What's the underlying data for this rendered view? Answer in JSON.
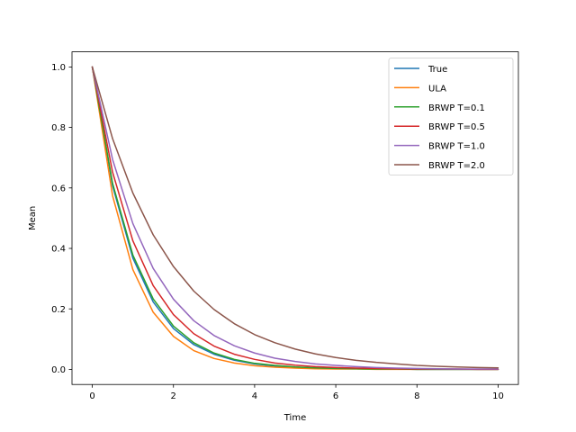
{
  "chart_data": {
    "type": "line",
    "title": "",
    "xlabel": "Time",
    "ylabel": "Mean",
    "xlim": [
      -0.5,
      10.5
    ],
    "ylim": [
      -0.05,
      1.05
    ],
    "xticks": [
      0,
      2,
      4,
      6,
      8,
      10
    ],
    "xtick_labels": [
      "0",
      "2",
      "4",
      "6",
      "8",
      "10"
    ],
    "yticks": [
      0.0,
      0.2,
      0.4,
      0.6,
      0.8,
      1.0
    ],
    "ytick_labels": [
      "0.0",
      "0.2",
      "0.4",
      "0.6",
      "0.8",
      "1.0"
    ],
    "grid": false,
    "legend_position": "top-right",
    "x": [
      0,
      0.5,
      1,
      1.5,
      2,
      2.5,
      3,
      3.5,
      4,
      4.5,
      5,
      5.5,
      6,
      6.5,
      7,
      7.5,
      8,
      8.5,
      9,
      9.5,
      10
    ],
    "series": [
      {
        "name": "True",
        "color": "#1f77b4",
        "values": [
          1.0,
          0.607,
          0.368,
          0.223,
          0.135,
          0.082,
          0.05,
          0.03,
          0.018,
          0.011,
          0.007,
          0.004,
          0.002,
          0.002,
          0.001,
          0.001,
          0.0,
          0.0,
          0.0,
          0.0,
          0.0
        ]
      },
      {
        "name": "ULA",
        "color": "#ff7f0e",
        "values": [
          1.0,
          0.574,
          0.33,
          0.189,
          0.109,
          0.062,
          0.036,
          0.021,
          0.012,
          0.007,
          0.004,
          0.002,
          0.001,
          0.001,
          0.0,
          0.0,
          0.0,
          0.0,
          0.0,
          0.0,
          0.0
        ]
      },
      {
        "name": "BRWP T=0.1",
        "color": "#2ca02c",
        "values": [
          1.0,
          0.615,
          0.378,
          0.233,
          0.143,
          0.088,
          0.054,
          0.033,
          0.02,
          0.013,
          0.008,
          0.005,
          0.003,
          0.002,
          0.001,
          0.001,
          0.0,
          0.0,
          0.0,
          0.0,
          0.0
        ]
      },
      {
        "name": "BRWP T=0.5",
        "color": "#d62728",
        "values": [
          1.0,
          0.652,
          0.425,
          0.277,
          0.181,
          0.118,
          0.077,
          0.05,
          0.033,
          0.021,
          0.014,
          0.009,
          0.006,
          0.004,
          0.003,
          0.002,
          0.001,
          0.001,
          0.001,
          0.0,
          0.0
        ]
      },
      {
        "name": "BRWP T=1.0",
        "color": "#9467bd",
        "values": [
          1.0,
          0.694,
          0.482,
          0.334,
          0.232,
          0.161,
          0.112,
          0.078,
          0.054,
          0.037,
          0.026,
          0.018,
          0.013,
          0.009,
          0.006,
          0.004,
          0.003,
          0.002,
          0.001,
          0.001,
          0.001
        ]
      },
      {
        "name": "BRWP T=2.0",
        "color": "#8c564b",
        "values": [
          1.0,
          0.763,
          0.583,
          0.445,
          0.34,
          0.259,
          0.198,
          0.151,
          0.115,
          0.088,
          0.067,
          0.051,
          0.039,
          0.03,
          0.023,
          0.018,
          0.013,
          0.01,
          0.008,
          0.006,
          0.005
        ]
      }
    ]
  }
}
